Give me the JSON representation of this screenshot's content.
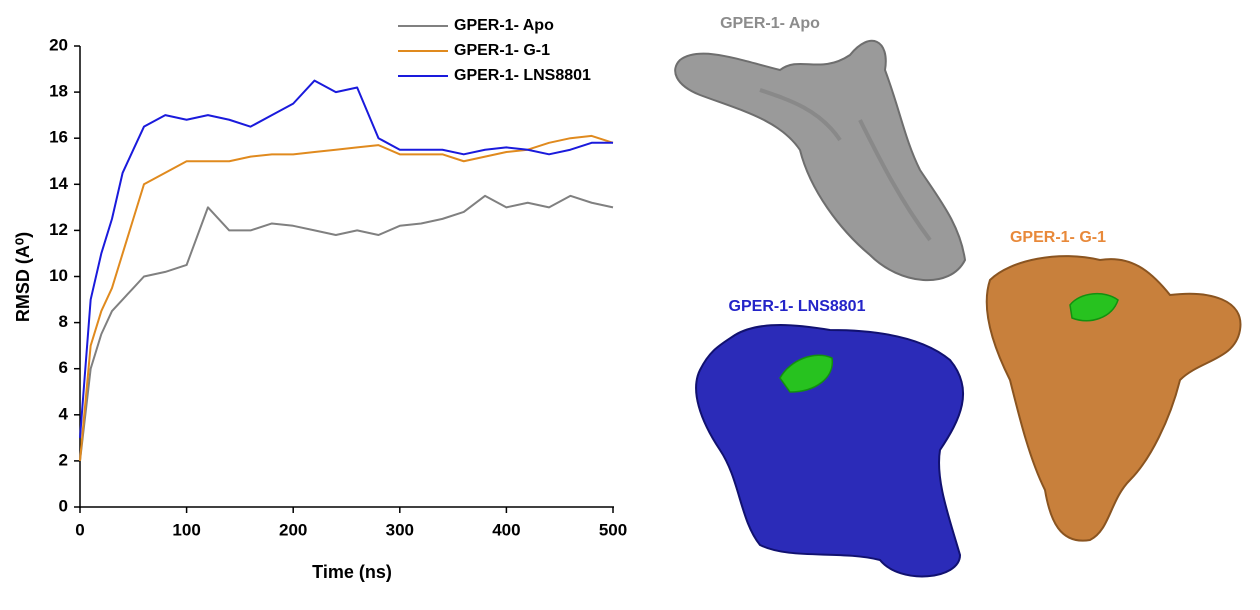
{
  "chart_data": {
    "type": "line",
    "xlabel": "Time (ns)",
    "ylabel": "RMSD (A⁰)",
    "x": [
      0,
      10,
      20,
      30,
      40,
      50,
      60,
      80,
      100,
      120,
      140,
      160,
      180,
      200,
      220,
      240,
      260,
      280,
      300,
      320,
      340,
      360,
      380,
      400,
      420,
      440,
      460,
      480,
      500
    ],
    "series": [
      {
        "name": "GPER-1- Apo",
        "color": "#808080",
        "values": [
          2,
          6,
          7.5,
          8.5,
          9,
          9.5,
          10,
          10.2,
          10.5,
          13,
          12,
          12,
          12.3,
          12.2,
          12,
          11.8,
          12,
          11.8,
          12.2,
          12.3,
          12.5,
          12.8,
          13.5,
          13,
          13.2,
          13,
          13.5,
          13.2,
          13
        ]
      },
      {
        "name": "GPER-1- G-1",
        "color": "#e08a1e",
        "values": [
          2,
          7,
          8.5,
          9.5,
          11,
          12.5,
          14,
          14.5,
          15,
          15,
          15,
          15.2,
          15.3,
          15.3,
          15.4,
          15.5,
          15.6,
          15.7,
          15.3,
          15.3,
          15.3,
          15,
          15.2,
          15.4,
          15.5,
          15.8,
          16,
          16.1,
          15.8
        ]
      },
      {
        "name": "GPER-1- LNS8801",
        "color": "#1a1adc",
        "values": [
          3,
          9,
          11,
          12.5,
          14.5,
          15.5,
          16.5,
          17,
          16.8,
          17,
          16.8,
          16.5,
          17,
          17.5,
          18.5,
          18,
          18.2,
          16,
          15.5,
          15.5,
          15.5,
          15.3,
          15.5,
          15.6,
          15.5,
          15.3,
          15.5,
          15.8,
          15.8
        ]
      }
    ],
    "xlim": [
      0,
      500
    ],
    "xticks": [
      0,
      100,
      200,
      300,
      400,
      500
    ],
    "ylim": [
      0,
      20
    ],
    "yticks": [
      0,
      2,
      4,
      6,
      8,
      10,
      12,
      14,
      16,
      18,
      20
    ],
    "grid": false,
    "legend": "top"
  },
  "structures": [
    {
      "label": "GPER-1- Apo",
      "color": "#8c8c8c"
    },
    {
      "label": "GPER-1- G-1",
      "color": "#e8893a"
    },
    {
      "label": "GPER-1- LNS8801",
      "color": "#2424c8"
    }
  ]
}
